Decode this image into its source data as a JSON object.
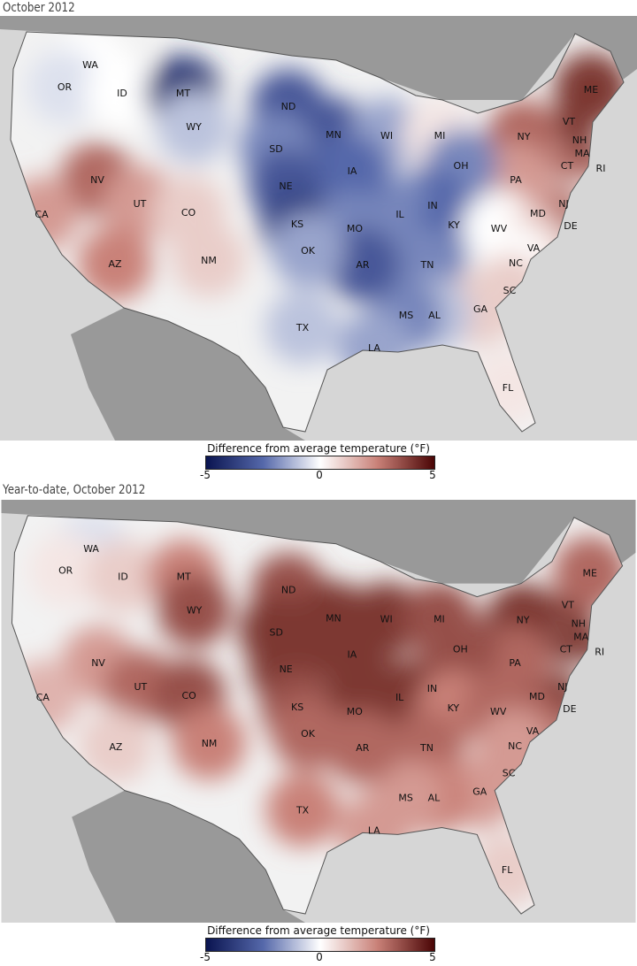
{
  "maps": [
    {
      "title": "October 2012",
      "legend": {
        "label": "Difference from average temperature (°F)",
        "min": "-5",
        "mid": "0",
        "max": "5"
      },
      "anomalies": {
        "WA": 0,
        "OR": -0.5,
        "ID": 0,
        "MT": -4,
        "ND": -3,
        "MN": -3,
        "WI": -1.5,
        "MI": 0.5,
        "SD": -2,
        "WY": -1,
        "NY": 3,
        "VT": 4,
        "NH": 4,
        "MA": 4,
        "CT": 3,
        "RI": 3,
        "ME": 4,
        "PA": 2,
        "NJ": 3,
        "DE": 3,
        "MD": 2,
        "OH": -2,
        "IN": -2.5,
        "IL": -2,
        "IA": -2.5,
        "NE": -3,
        "NV": 3,
        "UT": 2,
        "CO": 1,
        "CA": 2,
        "KS": -3.5,
        "MO": -2,
        "KY": -2.5,
        "WV": 0,
        "VA": 1,
        "NC": 0,
        "TN": -2,
        "SC": 1,
        "GA": 1,
        "AL": -1,
        "MS": -2,
        "AR": -3,
        "OK": -1.5,
        "TX": -1,
        "NM": 1,
        "AZ": 2.5,
        "LA": -1.5,
        "FL": 0.5
      }
    },
    {
      "title": "Year-to-date, October 2012",
      "legend": {
        "label": "Difference from average temperature (°F)",
        "min": "-5",
        "mid": "0",
        "max": "5"
      },
      "anomalies": {
        "WA": -0.5,
        "OR": 0.5,
        "ID": 1,
        "MT": 2.5,
        "ND": 3.5,
        "MN": 4,
        "WI": 4,
        "MI": 3.5,
        "SD": 4,
        "WY": 3.5,
        "NY": 4,
        "VT": 4,
        "NH": 4,
        "MA": 4,
        "CT": 4,
        "RI": 4,
        "ME": 3,
        "PA": 3,
        "NJ": 4,
        "DE": 4,
        "MD": 3.5,
        "OH": 3.5,
        "IN": 3.5,
        "IL": 4,
        "IA": 4,
        "NE": 4,
        "NV": 2,
        "UT": 3,
        "CO": 3.5,
        "CA": 1.5,
        "KS": 3.5,
        "MO": 4,
        "KY": 2.5,
        "WV": 3,
        "VA": 3,
        "NC": 2,
        "TN": 3,
        "SC": 2,
        "GA": 2,
        "AL": 2.5,
        "MS": 2,
        "AR": 3,
        "OK": 3,
        "TX": 2.5,
        "NM": 2.5,
        "AZ": 1,
        "LA": 2,
        "FL": 1
      }
    }
  ],
  "scale_colors": [
    "#0a1450",
    "#5568aa",
    "#ffffff",
    "#c98178",
    "#4a0505"
  ]
}
